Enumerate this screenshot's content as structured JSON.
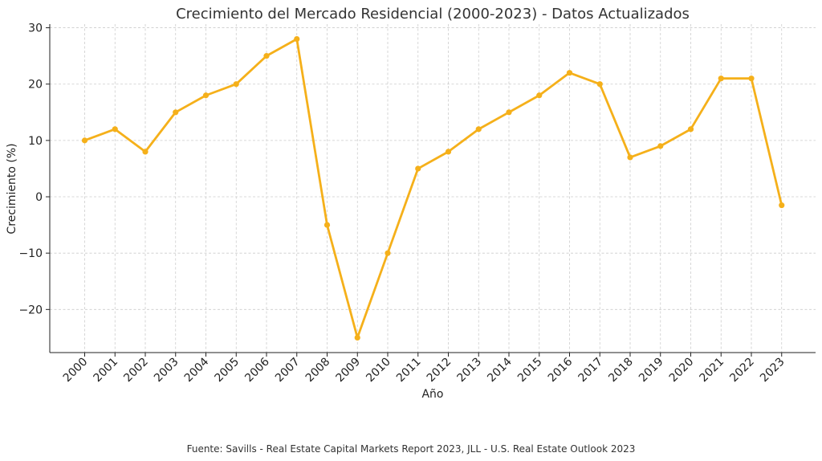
{
  "chart_data": {
    "type": "line",
    "title": "Crecimiento del Mercado Residencial (2000-2023) - Datos Actualizados",
    "xlabel": "Año",
    "ylabel": "Crecimiento (%)",
    "x": [
      "2000",
      "2001",
      "2002",
      "2003",
      "2004",
      "2005",
      "2006",
      "2007",
      "2008",
      "2009",
      "2010",
      "2011",
      "2012",
      "2013",
      "2014",
      "2015",
      "2016",
      "2017",
      "2018",
      "2019",
      "2020",
      "2021",
      "2022",
      "2023"
    ],
    "series": [
      {
        "name": "Crecimiento (%)",
        "color": "#f5b01a",
        "values": [
          10,
          12,
          8,
          15,
          18,
          20,
          25,
          28,
          -5,
          -25,
          -10,
          5,
          8,
          12,
          15,
          18,
          22,
          20,
          7,
          9,
          12,
          21,
          21,
          -1.5
        ]
      }
    ],
    "yticks": [
      -20,
      -10,
      0,
      10,
      20,
      30
    ],
    "ytick_labels": [
      "−20",
      "−10",
      "0",
      "10",
      "20",
      "30"
    ],
    "ylim": [
      -27.65,
      30.65
    ],
    "grid": true,
    "source": "Fuente: Savills - Real Estate Capital Markets Report 2023, JLL - U.S. Real Estate Outlook 2023"
  }
}
